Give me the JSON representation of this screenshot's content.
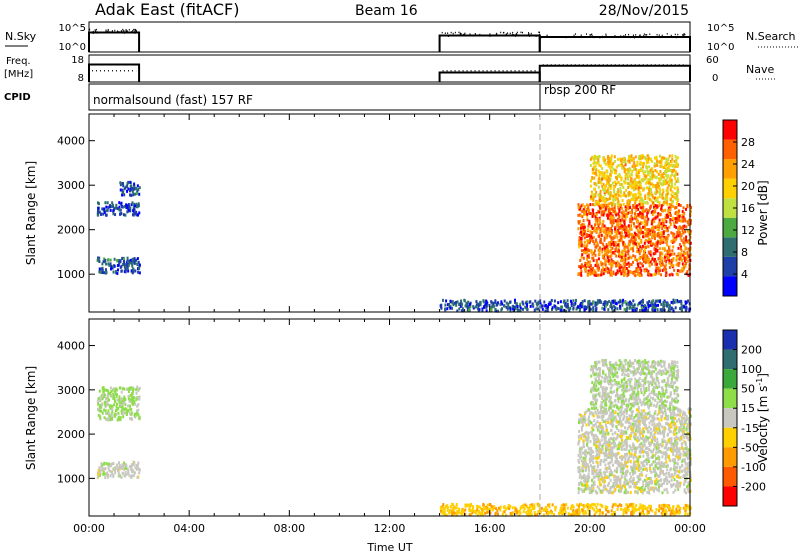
{
  "header": {
    "radar": "Adak East (fitACF)",
    "beam": "Beam 16",
    "date": "28/Nov/2015"
  },
  "chart_data": [
    {
      "type": "line",
      "panel": "noise",
      "left_label": "N.Sky",
      "right_label": "N.Search",
      "left_ticks": [
        "10^5",
        "10^0"
      ],
      "right_ticks": [
        "10^5",
        "10^0"
      ],
      "segments": [
        {
          "x": [
            "00:00",
            "02:00"
          ],
          "level": 0.35
        },
        {
          "x": [
            "14:00",
            "18:00"
          ],
          "level": 0.45
        },
        {
          "x": [
            "18:00",
            "24:00"
          ],
          "level": 0.5
        }
      ]
    },
    {
      "type": "line",
      "panel": "frequency",
      "left_label_lines": [
        "Freq.",
        "[MHz]"
      ],
      "right_label": "Nave",
      "left_ticks": [
        "18",
        "8"
      ],
      "right_ticks": [
        "60",
        "0"
      ],
      "left_range": [
        8,
        18
      ],
      "right_range": [
        0,
        60
      ],
      "freq_segments": [
        {
          "x": [
            "00:00",
            "02:00"
          ],
          "mhz": 14.5
        },
        {
          "x": [
            "14:00",
            "18:00"
          ],
          "mhz": 11.5
        },
        {
          "x": [
            "18:00",
            "24:00"
          ],
          "mhz": 14
        }
      ],
      "nave_segments": [
        {
          "x": [
            "00:00",
            "02:00"
          ],
          "nave": 25
        },
        {
          "x": [
            "14:00",
            "18:00"
          ],
          "nave": 25
        },
        {
          "x": [
            "18:00",
            "24:00"
          ],
          "nave": 38
        }
      ]
    },
    {
      "type": "table",
      "panel": "cpid",
      "label": "CPID",
      "entries": [
        {
          "start": "00:00",
          "text": "normalsound (fast) 157 RF"
        },
        {
          "start": "18:00",
          "text": "rbsp 200 RF"
        }
      ]
    },
    {
      "type": "heatmap",
      "panel": "power",
      "ylabel": "Slant Range [km]",
      "ylim": [
        150,
        4600
      ],
      "yticks": [
        1000,
        2000,
        3000,
        4000
      ],
      "colorbar_label": "Power [dB]",
      "colorbar_range": [
        0,
        32
      ],
      "colorbar_ticks": [
        4,
        8,
        12,
        16,
        20,
        24,
        28
      ],
      "colors": [
        "#0000ff",
        "#1f3fa8",
        "#2e6e70",
        "#4caa40",
        "#bfe040",
        "#ffd000",
        "#ffa000",
        "#ff6000",
        "#ff0000"
      ],
      "regions": [
        {
          "x": [
            0.3,
            2.0
          ],
          "range": [
            1050,
            1400
          ],
          "value": 7
        },
        {
          "x": [
            0.3,
            2.0
          ],
          "range": [
            2350,
            2650
          ],
          "value": 6
        },
        {
          "x": [
            1.2,
            2.0
          ],
          "range": [
            2800,
            3100
          ],
          "value": 6
        },
        {
          "x": [
            14.0,
            24.0
          ],
          "range": [
            200,
            450
          ],
          "value": 6
        },
        {
          "x": [
            19.5,
            24.0
          ],
          "range": [
            1000,
            2600
          ],
          "value": 26
        },
        {
          "x": [
            20.0,
            23.5
          ],
          "range": [
            2600,
            3700
          ],
          "value": 20
        }
      ]
    },
    {
      "type": "heatmap",
      "panel": "velocity",
      "ylabel": "Slant Range [km]",
      "ylim": [
        150,
        4600
      ],
      "yticks": [
        1000,
        2000,
        3000,
        4000
      ],
      "xlabel": "Time UT",
      "xticks": [
        "00:00",
        "04:00",
        "08:00",
        "12:00",
        "16:00",
        "20:00",
        "00:00"
      ],
      "colorbar_label_main": "Velocity [m s",
      "colorbar_label_sup": "-1",
      "colorbar_label_end": "]",
      "colorbar_ticks": [
        "200",
        "100",
        "50",
        "15",
        "-15",
        "-50",
        "-100",
        "-200"
      ],
      "colors": [
        "#1a2fb0",
        "#2e6e70",
        "#3aa83a",
        "#8ede4a",
        "#c8c8c0",
        "#ffd000",
        "#ff9a00",
        "#ff5a00",
        "#ff0000"
      ],
      "regions": [
        {
          "x": [
            0.3,
            2.0
          ],
          "range": [
            1050,
            1400
          ],
          "value": 0
        },
        {
          "x": [
            0.3,
            2.0
          ],
          "range": [
            2350,
            3100
          ],
          "value": 20
        },
        {
          "x": [
            14.0,
            24.0
          ],
          "range": [
            200,
            450
          ],
          "value": -40
        },
        {
          "x": [
            19.5,
            24.0
          ],
          "range": [
            700,
            2600
          ],
          "value": 0
        },
        {
          "x": [
            20.0,
            23.5
          ],
          "range": [
            2600,
            3700
          ],
          "value": 10
        }
      ]
    }
  ]
}
